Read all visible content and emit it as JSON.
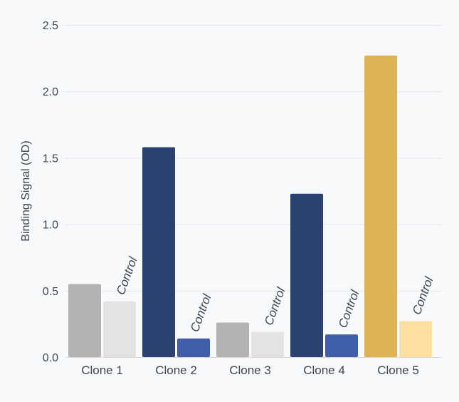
{
  "chart_data": {
    "type": "bar",
    "ylabel": "Binding Signal (OD)",
    "ylim": [
      0,
      2.5
    ],
    "yticks": [
      "0.0",
      "0.5",
      "1.0",
      "1.5",
      "2.0",
      "2.5"
    ],
    "grid": true,
    "categories": [
      "Clone 1",
      "Clone 2",
      "Clone 3",
      "Clone 4",
      "Clone 5"
    ],
    "series": [
      {
        "values": [
          0.55,
          1.58,
          0.26,
          1.23,
          2.27
        ],
        "colors": [
          "#b3b3b3",
          "#2b4170",
          "#b3b3b3",
          "#2b4170",
          "#deb356"
        ]
      },
      {
        "name": "Control",
        "values": [
          0.42,
          0.14,
          0.19,
          0.17,
          0.27
        ],
        "colors": [
          "#e3e3e3",
          "#3f5fa8",
          "#e3e3e3",
          "#3f5fa8",
          "#fde0a0"
        ]
      }
    ],
    "annotation_label": "Control"
  }
}
